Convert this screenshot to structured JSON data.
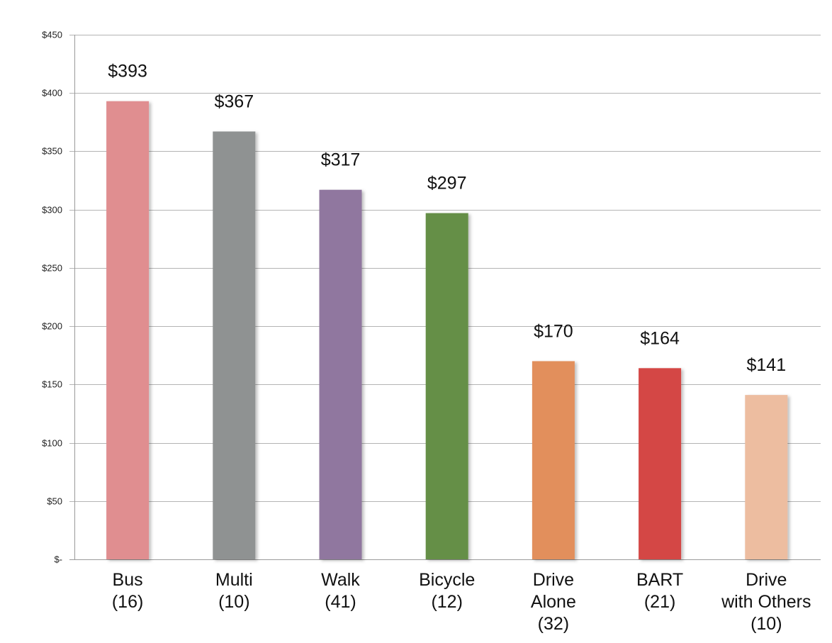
{
  "chart_data": {
    "type": "bar",
    "title": "",
    "xlabel": "",
    "ylabel": "",
    "ylim": [
      0,
      450
    ],
    "yticks": [
      0,
      50,
      100,
      150,
      200,
      250,
      300,
      350,
      400,
      450
    ],
    "ytick_labels": [
      "$-",
      "$50",
      "$100",
      "$150",
      "$200",
      "$250",
      "$300",
      "$350",
      "$400",
      "$450"
    ],
    "grid": true,
    "legend": "none",
    "categories": [
      [
        "Bus",
        "(16)"
      ],
      [
        "Multi",
        "(10)"
      ],
      [
        "Walk",
        "(41)"
      ],
      [
        "Bicycle",
        "(12)"
      ],
      [
        "Drive",
        "Alone",
        "(32)"
      ],
      [
        "BART",
        "(21)"
      ],
      [
        "Drive",
        "with Others",
        "(10)"
      ]
    ],
    "values": [
      393,
      367,
      317,
      297,
      170,
      164,
      141
    ],
    "value_labels": [
      "$393",
      "$367",
      "$317",
      "$297",
      "$170",
      "$164",
      "$141"
    ],
    "colors": [
      "#e08e90",
      "#8f9292",
      "#90779f",
      "#658f47",
      "#e28f5b",
      "#d44644",
      "#edbda0"
    ]
  }
}
